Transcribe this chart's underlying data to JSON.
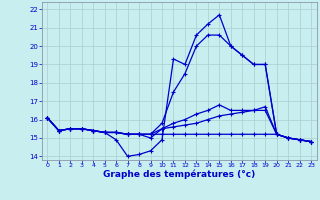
{
  "title": "Graphe des températures (°c)",
  "bg_color": "#c8eef0",
  "line_color": "#0000cc",
  "xlim_min": -0.5,
  "xlim_max": 23.5,
  "ylim_min": 13.8,
  "ylim_max": 22.4,
  "xticks": [
    0,
    1,
    2,
    3,
    4,
    5,
    6,
    7,
    8,
    9,
    10,
    11,
    12,
    13,
    14,
    15,
    16,
    17,
    18,
    19,
    20,
    21,
    22,
    23
  ],
  "yticks": [
    14,
    15,
    16,
    17,
    18,
    19,
    20,
    21,
    22
  ],
  "series": [
    {
      "x": [
        0,
        1,
        2,
        3,
        4,
        5,
        6,
        7,
        8,
        9,
        10,
        11,
        12,
        13,
        14,
        15,
        16,
        17,
        18,
        19,
        20,
        21,
        22,
        23
      ],
      "y": [
        16.1,
        15.4,
        15.5,
        15.5,
        15.4,
        15.3,
        14.9,
        14.0,
        14.1,
        14.3,
        14.9,
        19.3,
        19.0,
        20.6,
        21.2,
        21.7,
        20.0,
        19.5,
        19.0,
        19.0,
        15.2,
        15.0,
        14.9,
        14.8
      ]
    },
    {
      "x": [
        0,
        1,
        2,
        3,
        4,
        5,
        6,
        7,
        8,
        9,
        10,
        11,
        12,
        13,
        14,
        15,
        16,
        17,
        18,
        19,
        20,
        21,
        22,
        23
      ],
      "y": [
        16.1,
        15.4,
        15.5,
        15.5,
        15.4,
        15.3,
        15.3,
        15.2,
        15.2,
        15.2,
        15.8,
        17.5,
        18.5,
        20.0,
        20.6,
        20.6,
        20.0,
        19.5,
        19.0,
        19.0,
        15.2,
        15.0,
        14.9,
        14.8
      ]
    },
    {
      "x": [
        0,
        1,
        2,
        3,
        4,
        5,
        6,
        7,
        8,
        9,
        10,
        11,
        12,
        13,
        14,
        15,
        16,
        17,
        18,
        19,
        20,
        21,
        22,
        23
      ],
      "y": [
        16.1,
        15.4,
        15.5,
        15.5,
        15.4,
        15.3,
        15.3,
        15.2,
        15.2,
        15.0,
        15.5,
        15.8,
        16.0,
        16.3,
        16.5,
        16.8,
        16.5,
        16.5,
        16.5,
        16.7,
        15.2,
        15.0,
        14.9,
        14.8
      ]
    },
    {
      "x": [
        0,
        1,
        2,
        3,
        4,
        5,
        6,
        7,
        8,
        9,
        10,
        11,
        12,
        13,
        14,
        15,
        16,
        17,
        18,
        19,
        20,
        21,
        22,
        23
      ],
      "y": [
        16.1,
        15.4,
        15.5,
        15.5,
        15.4,
        15.3,
        15.3,
        15.2,
        15.2,
        15.2,
        15.2,
        15.2,
        15.2,
        15.2,
        15.2,
        15.2,
        15.2,
        15.2,
        15.2,
        15.2,
        15.2,
        15.0,
        14.9,
        14.8
      ]
    },
    {
      "x": [
        0,
        1,
        2,
        3,
        4,
        5,
        6,
        7,
        8,
        9,
        10,
        11,
        12,
        13,
        14,
        15,
        16,
        17,
        18,
        19,
        20,
        21,
        22,
        23
      ],
      "y": [
        16.1,
        15.4,
        15.5,
        15.5,
        15.4,
        15.3,
        15.3,
        15.2,
        15.2,
        15.2,
        15.5,
        15.6,
        15.7,
        15.8,
        16.0,
        16.2,
        16.3,
        16.4,
        16.5,
        16.5,
        15.2,
        15.0,
        14.9,
        14.8
      ]
    }
  ]
}
